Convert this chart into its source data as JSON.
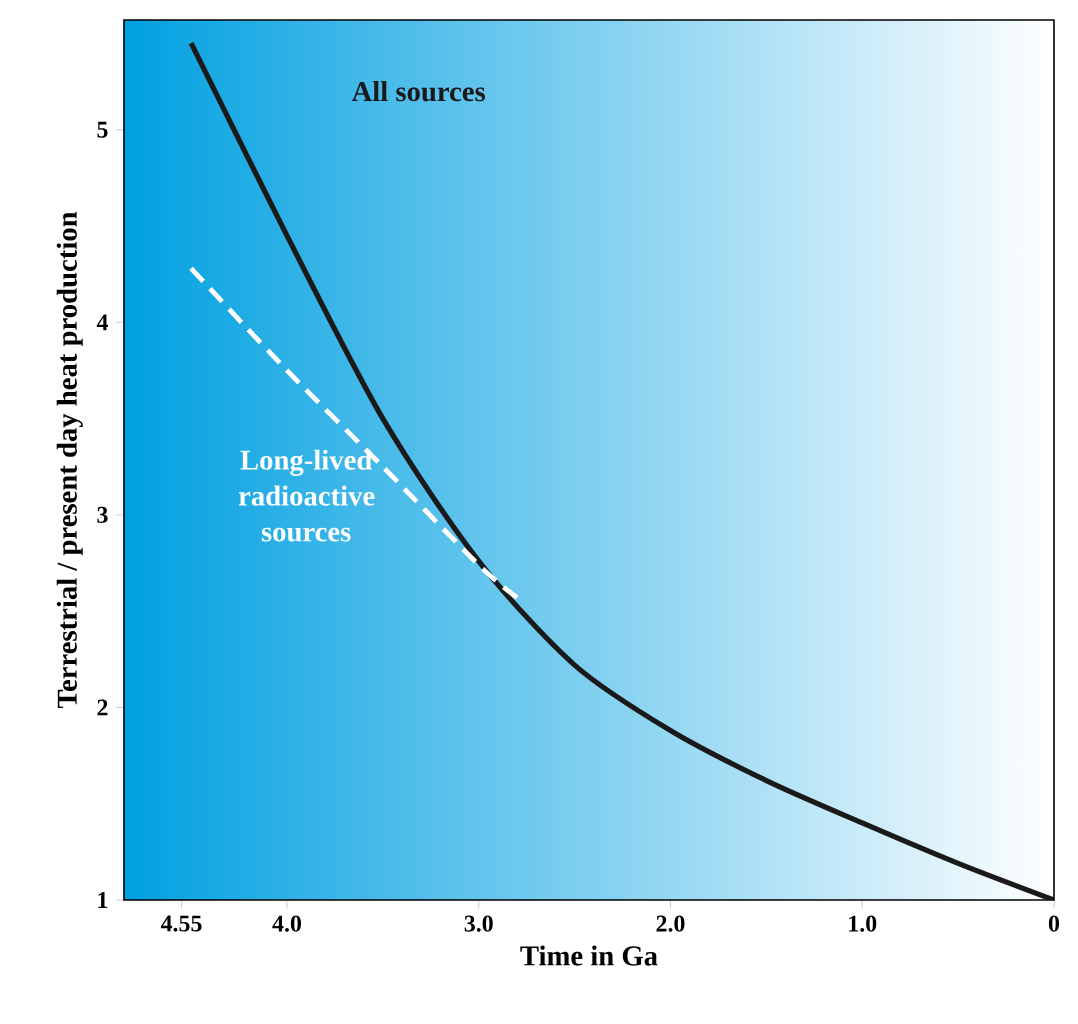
{
  "chart_data": {
    "type": "line",
    "xlabel": "Time in Ga",
    "ylabel": "Terrestrial / present day heat production",
    "xlim": [
      4.85,
      0
    ],
    "ylim": [
      1,
      5.57
    ],
    "xticks": [
      {
        "value": 4.55,
        "label": "4.55"
      },
      {
        "value": 4,
        "label": "4.0"
      },
      {
        "value": 3,
        "label": "3.0"
      },
      {
        "value": 2,
        "label": "2.0"
      },
      {
        "value": 1,
        "label": "1.0"
      },
      0
    ],
    "yticks": [
      1,
      2,
      3,
      4,
      5
    ],
    "grid": false,
    "legend": false,
    "series": [
      {
        "name": "All sources",
        "color": "#1a1a1a",
        "line_style": "solid",
        "x": [
          4.5,
          4.0,
          3.5,
          3.0,
          2.5,
          2.0,
          1.5,
          1.0,
          0.5,
          0
        ],
        "values": [
          5.45,
          4.45,
          3.5,
          2.76,
          2.22,
          1.88,
          1.62,
          1.4,
          1.19,
          1.0
        ]
      },
      {
        "name": "Long-lived radioactive sources",
        "color": "#ffffff",
        "line_style": "dashed",
        "x": [
          4.5,
          4.0,
          3.5,
          3.0,
          2.8
        ],
        "values": [
          4.28,
          3.75,
          3.25,
          2.74,
          2.57
        ]
      }
    ]
  }
}
